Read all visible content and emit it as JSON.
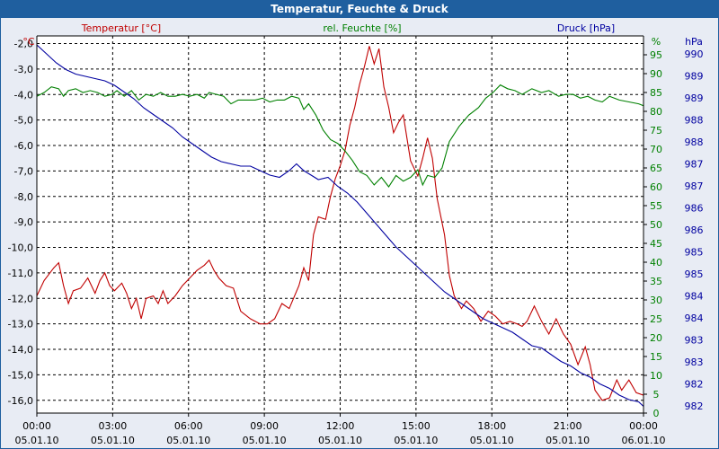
{
  "window": {
    "title": "Temperatur, Feuchte & Druck"
  },
  "chart_data": {
    "type": "line",
    "title": "Temperatur, Feuchte & Druck",
    "grid": true,
    "colors": {
      "temperature": "#c00000",
      "humidity": "#008000",
      "pressure": "#0000a0",
      "axis_text": "#000000"
    },
    "x_ticks": [
      {
        "time": "00:00",
        "date": "05.01.10"
      },
      {
        "time": "03:00",
        "date": "05.01.10"
      },
      {
        "time": "06:00",
        "date": "05.01.10"
      },
      {
        "time": "09:00",
        "date": "05.01.10"
      },
      {
        "time": "12:00",
        "date": "05.01.10"
      },
      {
        "time": "15:00",
        "date": "05.01.10"
      },
      {
        "time": "18:00",
        "date": "05.01.10"
      },
      {
        "time": "21:00",
        "date": "05.01.10"
      },
      {
        "time": "00:00",
        "date": "06.01.10"
      }
    ],
    "x_range_hours": [
      0,
      24
    ],
    "axes": {
      "left": {
        "unit": "°C",
        "range": [
          -16.5,
          -1.7
        ],
        "ticks": [
          "-2,0",
          "-3,0",
          "-4,0",
          "-5,0",
          "-6,0",
          "-7,0",
          "-8,0",
          "-9,0",
          "-10,0",
          "-11,0",
          "-12,0",
          "-13,0",
          "-14,0",
          "-15,0",
          "-16,0"
        ]
      },
      "right1": {
        "unit": "%",
        "range": [
          0,
          100
        ],
        "ticks": [
          "95",
          "90",
          "85",
          "80",
          "75",
          "70",
          "65",
          "60",
          "55",
          "50",
          "45",
          "40",
          "35",
          "30",
          "25",
          "20",
          "15",
          "10",
          "5",
          "0"
        ]
      },
      "right2": {
        "unit": "hPa",
        "range": [
          981.8,
          990.2
        ],
        "ticks": [
          "990",
          "989",
          "989",
          "988",
          "988",
          "987",
          "987",
          "986",
          "986",
          "985",
          "985",
          "984",
          "984",
          "983",
          "983",
          "982",
          "982"
        ]
      }
    },
    "series": [
      {
        "name": "Temperatur [°C]",
        "axis": "left",
        "points": [
          [
            0,
            -11.9
          ],
          [
            0.3,
            -11.3
          ],
          [
            0.7,
            -10.8
          ],
          [
            0.9,
            -10.6
          ],
          [
            1.1,
            -11.5
          ],
          [
            1.3,
            -12.2
          ],
          [
            1.5,
            -11.7
          ],
          [
            1.8,
            -11.6
          ],
          [
            2.1,
            -11.2
          ],
          [
            2.4,
            -11.8
          ],
          [
            2.6,
            -11.3
          ],
          [
            2.8,
            -11.0
          ],
          [
            3.0,
            -11.5
          ],
          [
            3.2,
            -11.7
          ],
          [
            3.5,
            -11.4
          ],
          [
            3.7,
            -11.8
          ],
          [
            3.9,
            -12.4
          ],
          [
            4.1,
            -12.0
          ],
          [
            4.3,
            -12.8
          ],
          [
            4.5,
            -12.0
          ],
          [
            4.8,
            -11.9
          ],
          [
            5.0,
            -12.2
          ],
          [
            5.2,
            -11.7
          ],
          [
            5.4,
            -12.2
          ],
          [
            5.7,
            -11.9
          ],
          [
            6.0,
            -11.5
          ],
          [
            6.3,
            -11.2
          ],
          [
            6.6,
            -10.9
          ],
          [
            6.9,
            -10.7
          ],
          [
            7.1,
            -10.5
          ],
          [
            7.3,
            -10.9
          ],
          [
            7.5,
            -11.2
          ],
          [
            7.8,
            -11.5
          ],
          [
            8.1,
            -11.6
          ],
          [
            8.4,
            -12.5
          ],
          [
            8.8,
            -12.8
          ],
          [
            9.2,
            -13.0
          ],
          [
            9.5,
            -13.0
          ],
          [
            9.8,
            -12.8
          ],
          [
            10.1,
            -12.2
          ],
          [
            10.4,
            -12.4
          ],
          [
            10.8,
            -11.5
          ],
          [
            11.0,
            -10.8
          ],
          [
            11.2,
            -11.3
          ],
          [
            11.4,
            -9.5
          ],
          [
            11.6,
            -8.8
          ],
          [
            11.9,
            -8.9
          ],
          [
            12.1,
            -8.0
          ],
          [
            12.3,
            -7.3
          ],
          [
            12.5,
            -6.8
          ],
          [
            12.7,
            -6.2
          ],
          [
            12.9,
            -5.2
          ],
          [
            13.1,
            -4.5
          ],
          [
            13.3,
            -3.6
          ],
          [
            13.5,
            -2.9
          ],
          [
            13.7,
            -2.1
          ],
          [
            13.9,
            -2.8
          ],
          [
            14.1,
            -2.2
          ],
          [
            14.3,
            -3.7
          ],
          [
            14.5,
            -4.5
          ],
          [
            14.7,
            -5.5
          ],
          [
            14.9,
            -5.1
          ],
          [
            15.1,
            -4.8
          ],
          [
            15.4,
            -6.6
          ],
          [
            15.7,
            -7.2
          ],
          [
            15.9,
            -6.5
          ],
          [
            16.1,
            -5.7
          ],
          [
            16.3,
            -6.5
          ],
          [
            16.5,
            -8.1
          ],
          [
            16.8,
            -9.5
          ],
          [
            17.0,
            -11.1
          ],
          [
            17.2,
            -11.9
          ],
          [
            17.5,
            -12.4
          ],
          [
            17.7,
            -12.1
          ],
          [
            18.0,
            -12.4
          ],
          [
            18.3,
            -12.9
          ],
          [
            18.6,
            -12.5
          ],
          [
            18.9,
            -12.7
          ],
          [
            19.2,
            -13.0
          ],
          [
            19.5,
            -12.9
          ],
          [
            19.8,
            -13.0
          ],
          [
            20.0,
            -13.1
          ],
          [
            20.2,
            -12.9
          ],
          [
            20.5,
            -12.3
          ],
          [
            20.8,
            -12.9
          ],
          [
            21.1,
            -13.4
          ],
          [
            21.4,
            -12.8
          ],
          [
            21.7,
            -13.4
          ],
          [
            22.0,
            -13.8
          ],
          [
            22.3,
            -14.6
          ],
          [
            22.6,
            -13.9
          ],
          [
            22.8,
            -14.6
          ],
          [
            23.0,
            -15.6
          ],
          [
            23.3,
            -16.0
          ],
          [
            23.6,
            -15.9
          ],
          [
            23.9,
            -15.2
          ],
          [
            24.1,
            -15.6
          ],
          [
            24.4,
            -15.2
          ],
          [
            24.7,
            -15.7
          ],
          [
            25.0,
            -15.8
          ]
        ]
      },
      {
        "name": "rel. Feuchte [%]",
        "axis": "right1",
        "points": [
          [
            0,
            84.0
          ],
          [
            0.3,
            85.0
          ],
          [
            0.6,
            86.5
          ],
          [
            0.9,
            86.0
          ],
          [
            1.1,
            84.0
          ],
          [
            1.3,
            85.5
          ],
          [
            1.6,
            86.0
          ],
          [
            1.9,
            85.0
          ],
          [
            2.2,
            85.5
          ],
          [
            2.5,
            85.0
          ],
          [
            2.8,
            84.0
          ],
          [
            3.1,
            84.5
          ],
          [
            3.3,
            85.5
          ],
          [
            3.6,
            84.0
          ],
          [
            3.9,
            85.5
          ],
          [
            4.2,
            83.0
          ],
          [
            4.5,
            84.5
          ],
          [
            4.8,
            84.0
          ],
          [
            5.1,
            85.0
          ],
          [
            5.4,
            84.0
          ],
          [
            5.7,
            84.0
          ],
          [
            6.0,
            84.5
          ],
          [
            6.3,
            84.0
          ],
          [
            6.6,
            84.5
          ],
          [
            6.9,
            83.5
          ],
          [
            7.1,
            85.0
          ],
          [
            7.4,
            84.5
          ],
          [
            7.7,
            84.0
          ],
          [
            8.0,
            82.0
          ],
          [
            8.3,
            83.0
          ],
          [
            8.6,
            83.0
          ],
          [
            9.0,
            83.0
          ],
          [
            9.3,
            83.5
          ],
          [
            9.6,
            82.5
          ],
          [
            9.9,
            83.0
          ],
          [
            10.2,
            83.0
          ],
          [
            10.5,
            84.0
          ],
          [
            10.8,
            83.5
          ],
          [
            11.0,
            80.5
          ],
          [
            11.2,
            82.0
          ],
          [
            11.5,
            79.0
          ],
          [
            11.8,
            75.0
          ],
          [
            12.1,
            72.5
          ],
          [
            12.4,
            71.5
          ],
          [
            12.7,
            69.5
          ],
          [
            13.0,
            67.0
          ],
          [
            13.3,
            64.0
          ],
          [
            13.6,
            63.0
          ],
          [
            13.9,
            60.5
          ],
          [
            14.2,
            62.5
          ],
          [
            14.5,
            60.0
          ],
          [
            14.8,
            63.0
          ],
          [
            15.1,
            61.5
          ],
          [
            15.4,
            62.5
          ],
          [
            15.7,
            64.5
          ],
          [
            15.9,
            60.5
          ],
          [
            16.1,
            63.0
          ],
          [
            16.4,
            62.5
          ],
          [
            16.7,
            65.0
          ],
          [
            17.0,
            72.0
          ],
          [
            17.4,
            76.0
          ],
          [
            17.8,
            79.0
          ],
          [
            18.2,
            81.0
          ],
          [
            18.5,
            83.5
          ],
          [
            18.8,
            85.0
          ],
          [
            19.1,
            87.0
          ],
          [
            19.4,
            86.0
          ],
          [
            19.7,
            85.5
          ],
          [
            20.0,
            84.5
          ],
          [
            20.4,
            86.0
          ],
          [
            20.8,
            85.0
          ],
          [
            21.1,
            85.5
          ],
          [
            21.5,
            84.0
          ],
          [
            21.8,
            84.5
          ],
          [
            22.1,
            84.5
          ],
          [
            22.4,
            83.5
          ],
          [
            22.7,
            84.0
          ],
          [
            23.0,
            83.0
          ],
          [
            23.3,
            82.5
          ],
          [
            23.6,
            84.0
          ],
          [
            24.0,
            83.0
          ],
          [
            24.4,
            82.5
          ],
          [
            24.8,
            82.0
          ],
          [
            25.0,
            81.5
          ]
        ]
      },
      {
        "name": "Druck [hPa]",
        "axis": "right2",
        "points": [
          [
            0,
            990.0
          ],
          [
            0.4,
            989.8
          ],
          [
            0.8,
            989.6
          ],
          [
            1.2,
            989.45
          ],
          [
            1.6,
            989.35
          ],
          [
            2.0,
            989.3
          ],
          [
            2.4,
            989.25
          ],
          [
            2.8,
            989.2
          ],
          [
            3.2,
            989.1
          ],
          [
            3.6,
            988.95
          ],
          [
            4.0,
            988.8
          ],
          [
            4.4,
            988.6
          ],
          [
            4.8,
            988.45
          ],
          [
            5.2,
            988.3
          ],
          [
            5.6,
            988.15
          ],
          [
            6.0,
            987.95
          ],
          [
            6.4,
            987.8
          ],
          [
            6.8,
            987.65
          ],
          [
            7.2,
            987.5
          ],
          [
            7.6,
            987.4
          ],
          [
            8.0,
            987.35
          ],
          [
            8.4,
            987.3
          ],
          [
            8.8,
            987.3
          ],
          [
            9.2,
            987.2
          ],
          [
            9.6,
            987.1
          ],
          [
            10.0,
            987.05
          ],
          [
            10.4,
            987.2
          ],
          [
            10.7,
            987.35
          ],
          [
            11.0,
            987.2
          ],
          [
            11.3,
            987.1
          ],
          [
            11.6,
            987.0
          ],
          [
            12.0,
            987.05
          ],
          [
            12.4,
            986.85
          ],
          [
            12.8,
            986.7
          ],
          [
            13.2,
            986.5
          ],
          [
            13.6,
            986.25
          ],
          [
            14.0,
            986.0
          ],
          [
            14.4,
            985.75
          ],
          [
            14.8,
            985.5
          ],
          [
            15.2,
            985.3
          ],
          [
            15.6,
            985.1
          ],
          [
            16.0,
            984.9
          ],
          [
            16.4,
            984.7
          ],
          [
            16.8,
            984.5
          ],
          [
            17.2,
            984.35
          ],
          [
            17.6,
            984.2
          ],
          [
            18.0,
            984.05
          ],
          [
            18.4,
            983.9
          ],
          [
            18.8,
            983.8
          ],
          [
            19.2,
            983.7
          ],
          [
            19.6,
            983.6
          ],
          [
            20.0,
            983.45
          ],
          [
            20.4,
            983.3
          ],
          [
            20.8,
            983.25
          ],
          [
            21.2,
            983.1
          ],
          [
            21.6,
            982.95
          ],
          [
            22.0,
            982.85
          ],
          [
            22.4,
            982.7
          ],
          [
            22.8,
            982.6
          ],
          [
            23.2,
            982.45
          ],
          [
            23.6,
            982.35
          ],
          [
            24.0,
            982.2
          ],
          [
            24.4,
            982.1
          ],
          [
            24.8,
            982.05
          ],
          [
            25.0,
            981.95
          ]
        ]
      }
    ]
  }
}
